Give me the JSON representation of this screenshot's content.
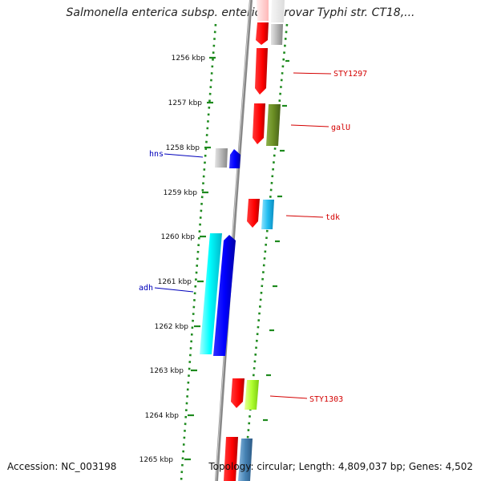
{
  "title": "Salmonella enterica subsp. enterica serovar Typhi str. CT18,...",
  "footer": {
    "accession": "Accession: NC_003198",
    "topology": "Topology: circular; Length: 4,809,037 bp; Genes: 4,502"
  },
  "colors": {
    "backbone": "#8a8a8a",
    "tick_dots": "#1e8a1e",
    "label_forward": "#d40000",
    "label_reverse": "#0000bb"
  },
  "scale": {
    "unit": "kbp",
    "ticks": [
      {
        "label": "1256 kbp"
      },
      {
        "label": "1257 kbp"
      },
      {
        "label": "1258 kbp"
      },
      {
        "label": "1259 kbp"
      },
      {
        "label": "1260 kbp"
      },
      {
        "label": "1261 kbp"
      },
      {
        "label": "1262 kbp"
      },
      {
        "label": "1263 kbp"
      },
      {
        "label": "1264 kbp"
      },
      {
        "label": "1265 kbp"
      }
    ]
  },
  "gene_labels": [
    {
      "text": "STY1297",
      "strand": "forward"
    },
    {
      "text": "galU",
      "strand": "forward"
    },
    {
      "text": "hns",
      "strand": "reverse"
    },
    {
      "text": "tdk",
      "strand": "forward"
    },
    {
      "text": "adh",
      "strand": "reverse"
    },
    {
      "text": "STY1303",
      "strand": "forward"
    }
  ]
}
